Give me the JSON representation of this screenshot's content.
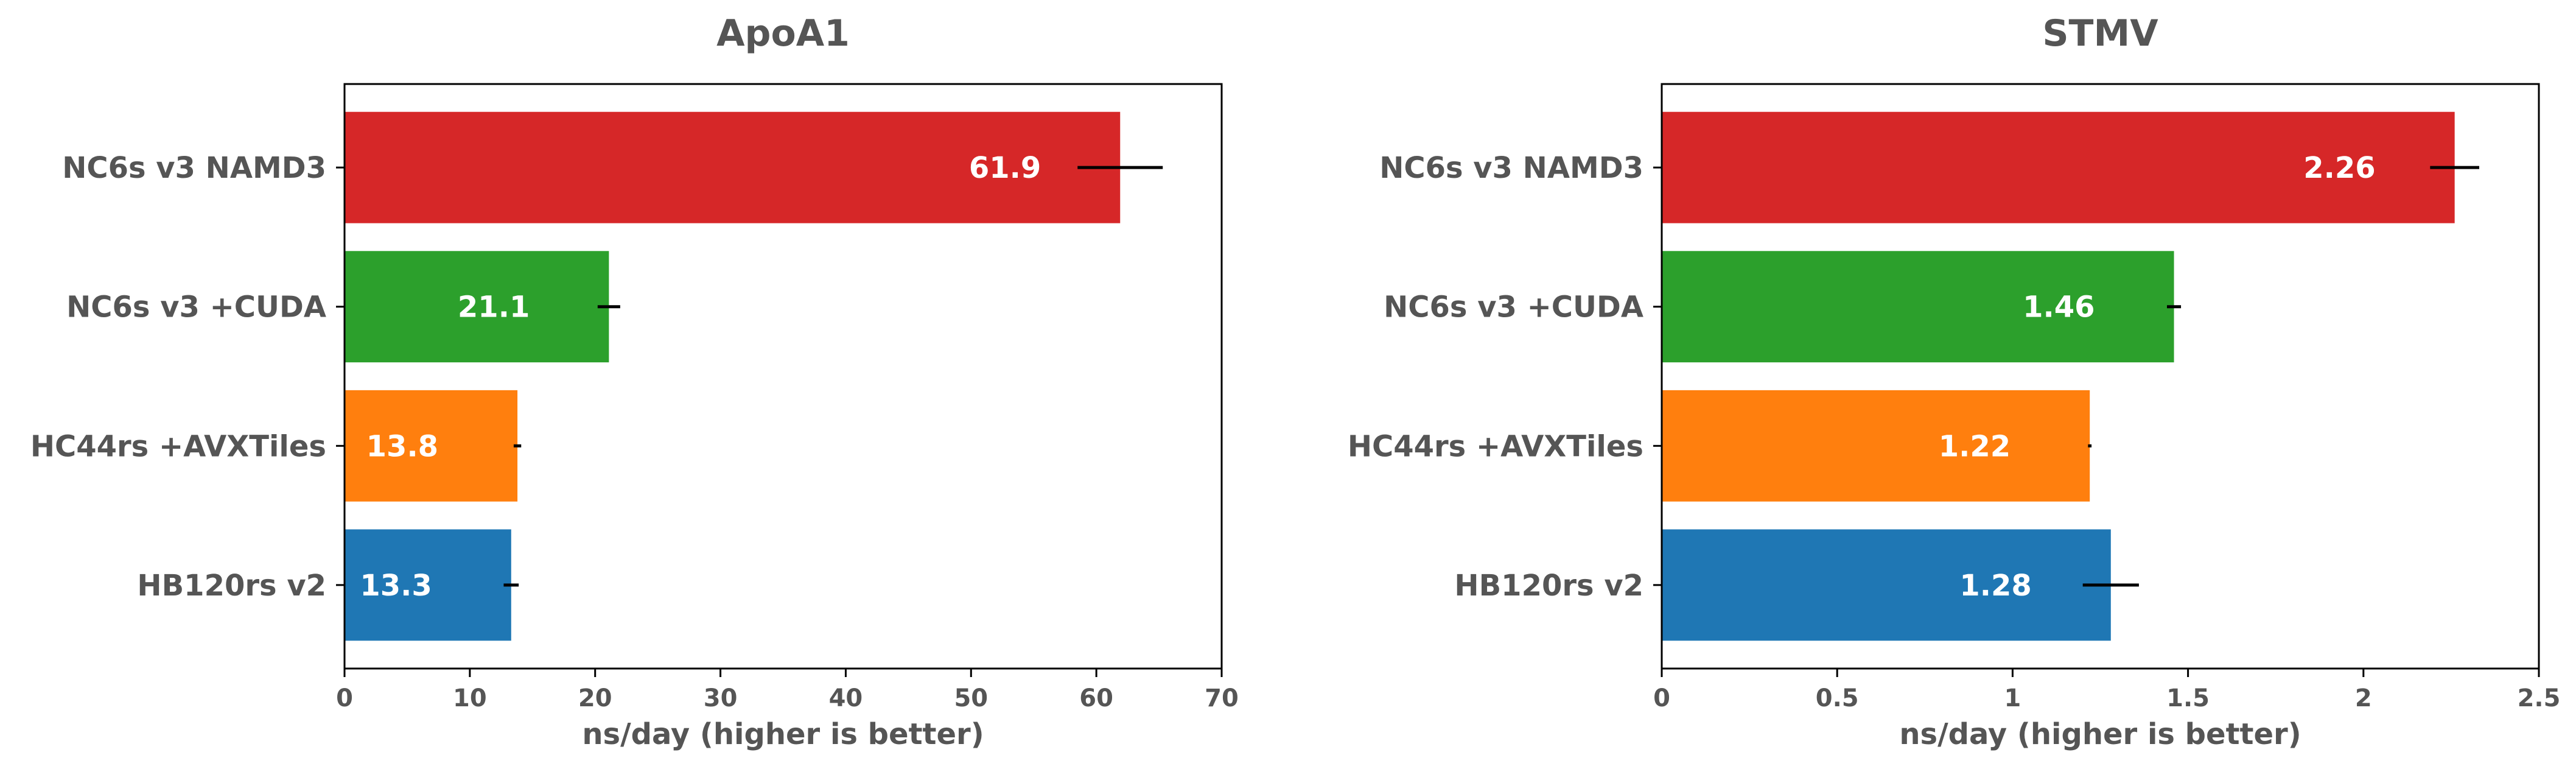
{
  "chart_data": [
    {
      "type": "bar",
      "orientation": "horizontal",
      "title": "ApoA1",
      "xlabel": "ns/day (higher is better)",
      "ylabel": "",
      "xlim": [
        0,
        70
      ],
      "xticks": [
        0,
        10,
        20,
        30,
        40,
        50,
        60,
        70
      ],
      "xtick_labels": [
        "0",
        "10",
        "20",
        "30",
        "40",
        "50",
        "60",
        "70"
      ],
      "categories": [
        "NC6s v3 NAMD3",
        "NC6s v3 +CUDA",
        "HC44rs +AVXTiles",
        "HB120rs v2"
      ],
      "values": [
        61.9,
        21.1,
        13.8,
        13.3
      ],
      "value_labels": [
        "61.9",
        "21.1",
        "13.8",
        "13.3"
      ],
      "errors": [
        3.4,
        0.9,
        0.3,
        0.6
      ],
      "colors": [
        "#d62728",
        "#2ca02c",
        "#ff7f0e",
        "#1f77b4"
      ]
    },
    {
      "type": "bar",
      "orientation": "horizontal",
      "title": "STMV",
      "xlabel": "ns/day (higher is better)",
      "ylabel": "",
      "xlim": [
        0,
        2.5
      ],
      "xticks": [
        0,
        0.5,
        1,
        1.5,
        2,
        2.5
      ],
      "xtick_labels": [
        "0",
        "0.5",
        "1",
        "1.5",
        "2",
        "2.5"
      ],
      "categories": [
        "NC6s v3 NAMD3",
        "NC6s v3 +CUDA",
        "HC44rs +AVXTiles",
        "HB120rs v2"
      ],
      "values": [
        2.26,
        1.46,
        1.22,
        1.28
      ],
      "value_labels": [
        "2.26",
        "1.46",
        "1.22",
        "1.28"
      ],
      "errors": [
        0.07,
        0.02,
        0.005,
        0.08
      ],
      "colors": [
        "#d62728",
        "#2ca02c",
        "#ff7f0e",
        "#1f77b4"
      ]
    }
  ]
}
